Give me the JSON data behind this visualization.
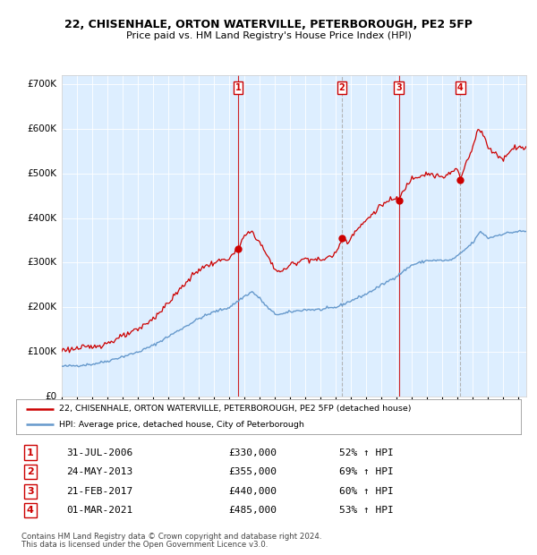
{
  "title": "22, CHISENHALE, ORTON WATERVILLE, PETERBOROUGH, PE2 5FP",
  "subtitle": "Price paid vs. HM Land Registry's House Price Index (HPI)",
  "legend_line1": "22, CHISENHALE, ORTON WATERVILLE, PETERBOROUGH, PE2 5FP (detached house)",
  "legend_line2": "HPI: Average price, detached house, City of Peterborough",
  "footer1": "Contains HM Land Registry data © Crown copyright and database right 2024.",
  "footer2": "This data is licensed under the Open Government Licence v3.0.",
  "transactions": [
    {
      "num": 1,
      "date": "31-JUL-2006",
      "price": 330000,
      "pct": "52% ↑ HPI",
      "date_float": 2006.58,
      "is_buy": true
    },
    {
      "num": 2,
      "date": "24-MAY-2013",
      "price": 355000,
      "pct": "69% ↑ HPI",
      "date_float": 2013.4,
      "is_buy": false
    },
    {
      "num": 3,
      "date": "21-FEB-2017",
      "price": 440000,
      "pct": "60% ↑ HPI",
      "date_float": 2017.14,
      "is_buy": true
    },
    {
      "num": 4,
      "date": "01-MAR-2021",
      "price": 485000,
      "pct": "53% ↑ HPI",
      "date_float": 2021.17,
      "is_buy": false
    }
  ],
  "hpi_color": "#6699cc",
  "price_color": "#cc0000",
  "bg_color": "#ddeeff",
  "grid_color": "#ffffff",
  "outer_bg": "#ffffff",
  "ylim": [
    0,
    720000
  ],
  "xlim_start": 1995.0,
  "xlim_end": 2025.5,
  "yticks": [
    0,
    100000,
    200000,
    300000,
    400000,
    500000,
    600000,
    700000
  ],
  "ytick_labels": [
    "£0",
    "£100K",
    "£200K",
    "£300K",
    "£400K",
    "£500K",
    "£600K",
    "£700K"
  ],
  "row_prices": [
    "£330,000",
    "£355,000",
    "£440,000",
    "£485,000"
  ]
}
